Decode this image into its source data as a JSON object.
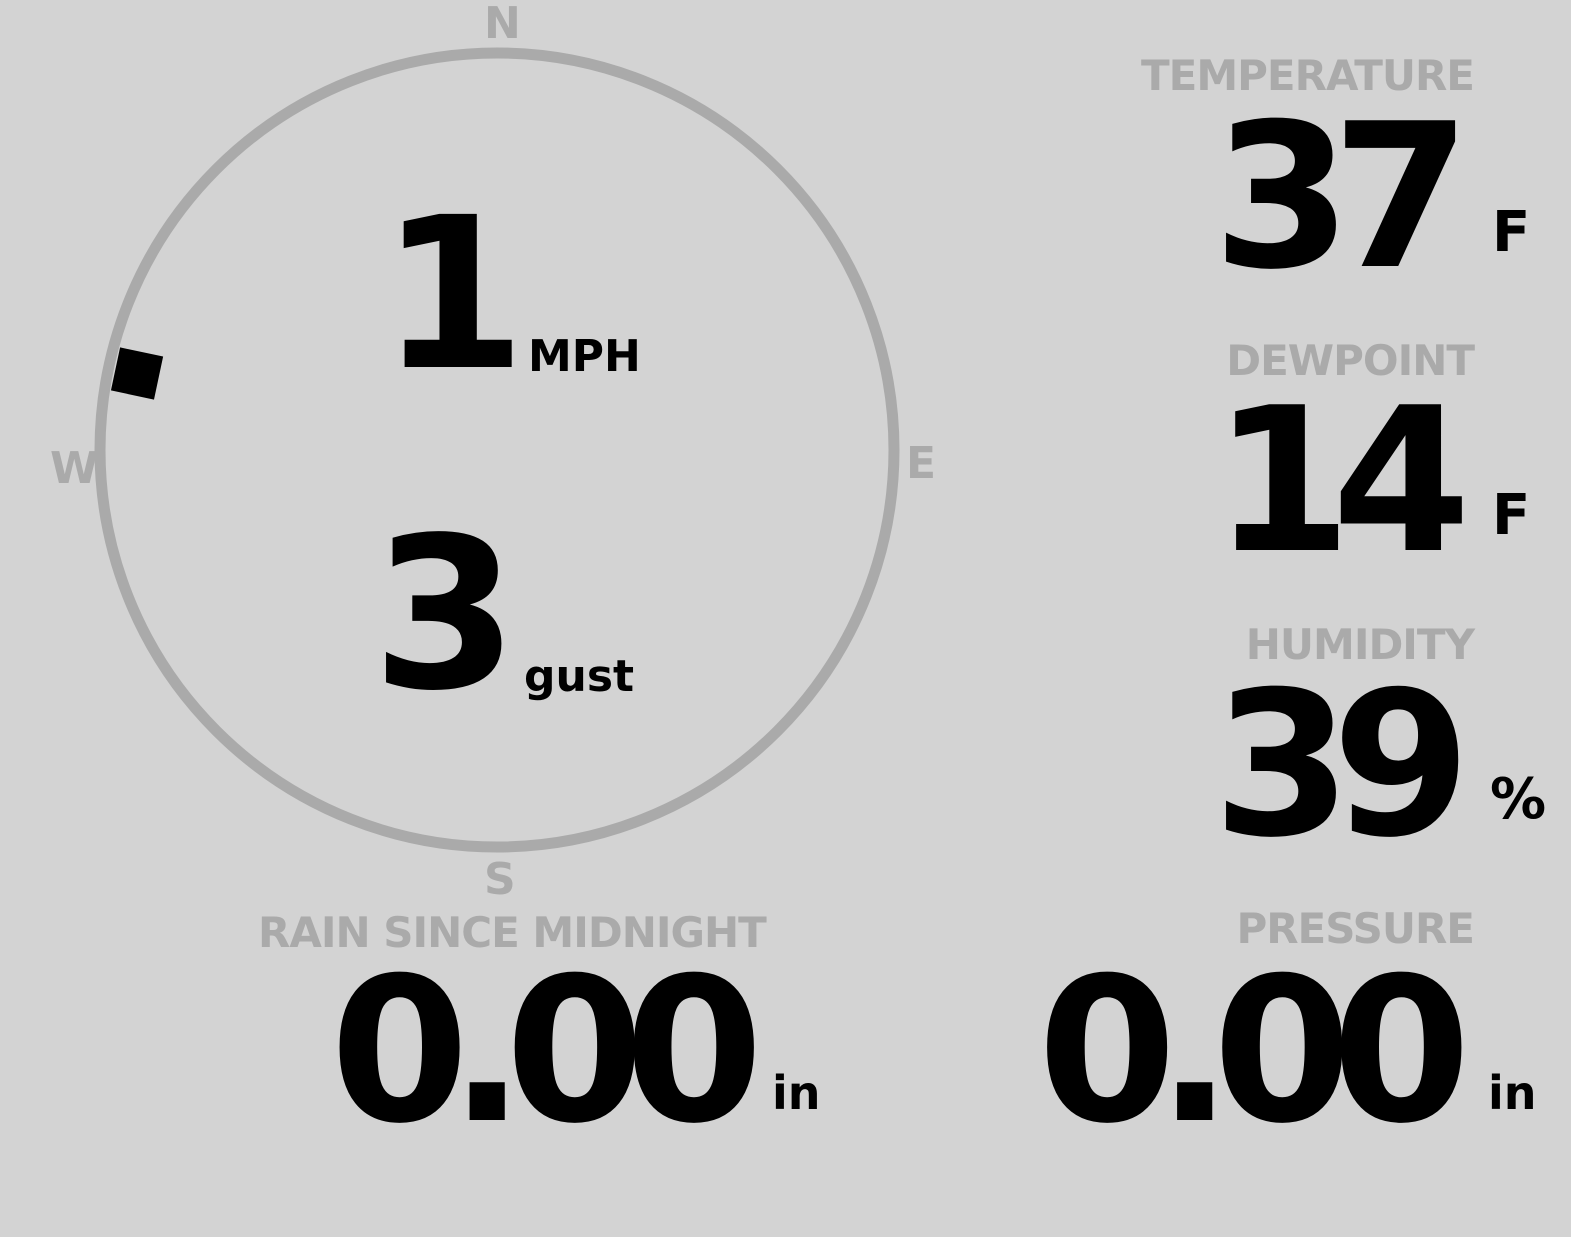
{
  "compass": {
    "north": "N",
    "south": "S",
    "east": "E",
    "west": "W",
    "wind_direction_deg": 282
  },
  "wind": {
    "speed": "1",
    "speed_unit": "MPH",
    "gust": "3",
    "gust_unit": "gust"
  },
  "temperature": {
    "label": "TEMPERATURE",
    "value": "37",
    "unit": "F"
  },
  "dewpoint": {
    "label": "DEWPOINT",
    "value": "14",
    "unit": "F"
  },
  "humidity": {
    "label": "HUMIDITY",
    "value": "39",
    "unit": "%"
  },
  "rain": {
    "label": "RAIN SINCE MIDNIGHT",
    "value": "0.00",
    "unit": "in"
  },
  "pressure": {
    "label": "PRESSURE",
    "value": "0.00",
    "unit": "in"
  },
  "colors": {
    "background": "#d3d3d3",
    "label": "#aaaaaa",
    "value": "#000000",
    "ring": "#aaaaaa"
  }
}
